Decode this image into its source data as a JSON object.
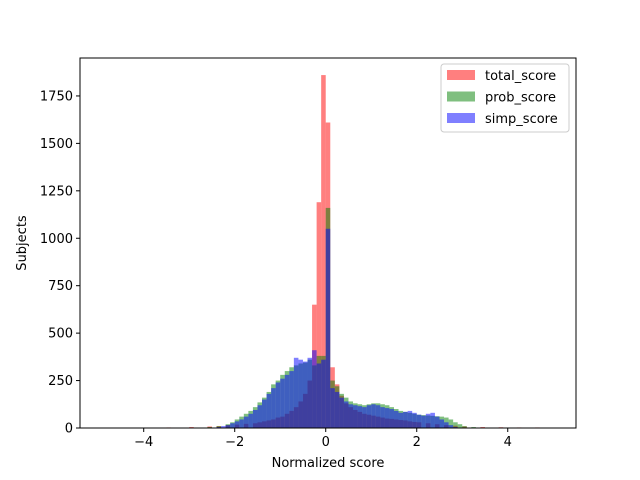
{
  "chart_data": {
    "type": "bar",
    "subtype": "histogram-overlay",
    "title": "",
    "xlabel": "Normalized score",
    "ylabel": "Subjects",
    "xlim": [
      -5.4,
      5.5
    ],
    "ylim": [
      0,
      1950
    ],
    "xticks": [
      -4,
      -2,
      0,
      2,
      4
    ],
    "xtick_labels": [
      "−4",
      "−2",
      "0",
      "2",
      "4"
    ],
    "yticks": [
      0,
      250,
      500,
      750,
      1000,
      1250,
      1500,
      1750
    ],
    "ytick_labels": [
      "0",
      "250",
      "500",
      "750",
      "1000",
      "1250",
      "1500",
      "1750"
    ],
    "grid": false,
    "legend_position": "top-right",
    "bin_width": 0.1,
    "series": [
      {
        "name": "total_score",
        "color": "#ff0000",
        "alpha": 0.5,
        "bins": [
          {
            "x": -3.5,
            "y": 3
          },
          {
            "x": -3.0,
            "y": 5
          },
          {
            "x": -2.6,
            "y": 8
          },
          {
            "x": -2.4,
            "y": 10
          },
          {
            "x": -2.2,
            "y": 15
          },
          {
            "x": -2.0,
            "y": 18
          },
          {
            "x": -1.8,
            "y": 22
          },
          {
            "x": -1.6,
            "y": 25
          },
          {
            "x": -1.5,
            "y": 30
          },
          {
            "x": -1.4,
            "y": 35
          },
          {
            "x": -1.3,
            "y": 40
          },
          {
            "x": -1.2,
            "y": 45
          },
          {
            "x": -1.1,
            "y": 55
          },
          {
            "x": -1.0,
            "y": 60
          },
          {
            "x": -0.9,
            "y": 75
          },
          {
            "x": -0.8,
            "y": 90
          },
          {
            "x": -0.7,
            "y": 110
          },
          {
            "x": -0.6,
            "y": 140
          },
          {
            "x": -0.5,
            "y": 180
          },
          {
            "x": -0.4,
            "y": 250
          },
          {
            "x": -0.3,
            "y": 650
          },
          {
            "x": -0.2,
            "y": 1190
          },
          {
            "x": -0.1,
            "y": 1860
          },
          {
            "x": 0.0,
            "y": 1610
          },
          {
            "x": 0.1,
            "y": 320
          },
          {
            "x": 0.2,
            "y": 230
          },
          {
            "x": 0.3,
            "y": 170
          },
          {
            "x": 0.4,
            "y": 130
          },
          {
            "x": 0.5,
            "y": 110
          },
          {
            "x": 0.6,
            "y": 95
          },
          {
            "x": 0.7,
            "y": 85
          },
          {
            "x": 0.8,
            "y": 75
          },
          {
            "x": 0.9,
            "y": 70
          },
          {
            "x": 1.0,
            "y": 65
          },
          {
            "x": 1.1,
            "y": 60
          },
          {
            "x": 1.2,
            "y": 55
          },
          {
            "x": 1.3,
            "y": 50
          },
          {
            "x": 1.4,
            "y": 48
          },
          {
            "x": 1.5,
            "y": 45
          },
          {
            "x": 1.6,
            "y": 42
          },
          {
            "x": 1.7,
            "y": 40
          },
          {
            "x": 1.8,
            "y": 35
          },
          {
            "x": 1.9,
            "y": 32
          },
          {
            "x": 2.0,
            "y": 30
          },
          {
            "x": 2.2,
            "y": 25
          },
          {
            "x": 2.4,
            "y": 20
          },
          {
            "x": 2.6,
            "y": 15
          },
          {
            "x": 2.8,
            "y": 12
          },
          {
            "x": 3.0,
            "y": 8
          },
          {
            "x": 3.4,
            "y": 5
          },
          {
            "x": 3.8,
            "y": 4
          },
          {
            "x": 4.2,
            "y": 3
          },
          {
            "x": 4.6,
            "y": 3
          }
        ]
      },
      {
        "name": "prob_score",
        "color": "#008000",
        "alpha": 0.5,
        "bins": [
          {
            "x": -2.6,
            "y": 5
          },
          {
            "x": -2.4,
            "y": 10
          },
          {
            "x": -2.2,
            "y": 20
          },
          {
            "x": -2.1,
            "y": 30
          },
          {
            "x": -2.0,
            "y": 45
          },
          {
            "x": -1.9,
            "y": 60
          },
          {
            "x": -1.8,
            "y": 75
          },
          {
            "x": -1.7,
            "y": 90
          },
          {
            "x": -1.6,
            "y": 110
          },
          {
            "x": -1.5,
            "y": 135
          },
          {
            "x": -1.4,
            "y": 160
          },
          {
            "x": -1.3,
            "y": 190
          },
          {
            "x": -1.2,
            "y": 230
          },
          {
            "x": -1.1,
            "y": 250
          },
          {
            "x": -1.0,
            "y": 280
          },
          {
            "x": -0.9,
            "y": 300
          },
          {
            "x": -0.8,
            "y": 320
          },
          {
            "x": -0.7,
            "y": 330
          },
          {
            "x": -0.6,
            "y": 340
          },
          {
            "x": -0.5,
            "y": 345
          },
          {
            "x": -0.4,
            "y": 360
          },
          {
            "x": -0.3,
            "y": 330
          },
          {
            "x": -0.2,
            "y": 380
          },
          {
            "x": -0.1,
            "y": 380
          },
          {
            "x": 0.0,
            "y": 1160
          },
          {
            "x": 0.1,
            "y": 250
          },
          {
            "x": 0.2,
            "y": 220
          },
          {
            "x": 0.3,
            "y": 180
          },
          {
            "x": 0.4,
            "y": 160
          },
          {
            "x": 0.5,
            "y": 140
          },
          {
            "x": 0.6,
            "y": 130
          },
          {
            "x": 0.7,
            "y": 125
          },
          {
            "x": 0.8,
            "y": 120
          },
          {
            "x": 0.9,
            "y": 125
          },
          {
            "x": 1.0,
            "y": 130
          },
          {
            "x": 1.1,
            "y": 130
          },
          {
            "x": 1.2,
            "y": 125
          },
          {
            "x": 1.3,
            "y": 120
          },
          {
            "x": 1.4,
            "y": 110
          },
          {
            "x": 1.5,
            "y": 100
          },
          {
            "x": 1.6,
            "y": 90
          },
          {
            "x": 1.7,
            "y": 85
          },
          {
            "x": 1.8,
            "y": 80
          },
          {
            "x": 1.9,
            "y": 75
          },
          {
            "x": 2.0,
            "y": 70
          },
          {
            "x": 2.1,
            "y": 68
          },
          {
            "x": 2.2,
            "y": 66
          },
          {
            "x": 2.3,
            "y": 64
          },
          {
            "x": 2.4,
            "y": 62
          },
          {
            "x": 2.5,
            "y": 60
          },
          {
            "x": 2.6,
            "y": 55
          },
          {
            "x": 2.7,
            "y": 45
          },
          {
            "x": 2.8,
            "y": 30
          },
          {
            "x": 2.9,
            "y": 20
          },
          {
            "x": 3.0,
            "y": 10
          },
          {
            "x": 3.2,
            "y": 5
          }
        ]
      },
      {
        "name": "simp_score",
        "color": "#0000ff",
        "alpha": 0.5,
        "bins": [
          {
            "x": -2.4,
            "y": 5
          },
          {
            "x": -2.3,
            "y": 10
          },
          {
            "x": -2.2,
            "y": 15
          },
          {
            "x": -2.1,
            "y": 25
          },
          {
            "x": -2.0,
            "y": 35
          },
          {
            "x": -1.9,
            "y": 45
          },
          {
            "x": -1.8,
            "y": 60
          },
          {
            "x": -1.7,
            "y": 75
          },
          {
            "x": -1.6,
            "y": 95
          },
          {
            "x": -1.5,
            "y": 120
          },
          {
            "x": -1.4,
            "y": 150
          },
          {
            "x": -1.3,
            "y": 180
          },
          {
            "x": -1.2,
            "y": 210
          },
          {
            "x": -1.1,
            "y": 240
          },
          {
            "x": -1.0,
            "y": 260
          },
          {
            "x": -0.9,
            "y": 280
          },
          {
            "x": -0.8,
            "y": 300
          },
          {
            "x": -0.7,
            "y": 370
          },
          {
            "x": -0.6,
            "y": 360
          },
          {
            "x": -0.5,
            "y": 350
          },
          {
            "x": -0.4,
            "y": 370
          },
          {
            "x": -0.3,
            "y": 410
          },
          {
            "x": -0.2,
            "y": 340
          },
          {
            "x": -0.1,
            "y": 360
          },
          {
            "x": 0.0,
            "y": 1050
          },
          {
            "x": 0.1,
            "y": 210
          },
          {
            "x": 0.2,
            "y": 190
          },
          {
            "x": 0.3,
            "y": 160
          },
          {
            "x": 0.4,
            "y": 140
          },
          {
            "x": 0.5,
            "y": 125
          },
          {
            "x": 0.6,
            "y": 120
          },
          {
            "x": 0.7,
            "y": 115
          },
          {
            "x": 0.8,
            "y": 110
          },
          {
            "x": 0.9,
            "y": 120
          },
          {
            "x": 1.0,
            "y": 125
          },
          {
            "x": 1.1,
            "y": 120
          },
          {
            "x": 1.2,
            "y": 110
          },
          {
            "x": 1.3,
            "y": 105
          },
          {
            "x": 1.4,
            "y": 100
          },
          {
            "x": 1.5,
            "y": 90
          },
          {
            "x": 1.6,
            "y": 80
          },
          {
            "x": 1.7,
            "y": 85
          },
          {
            "x": 1.8,
            "y": 90
          },
          {
            "x": 1.9,
            "y": 80
          },
          {
            "x": 2.0,
            "y": 70
          },
          {
            "x": 2.1,
            "y": 65
          },
          {
            "x": 2.2,
            "y": 75
          },
          {
            "x": 2.3,
            "y": 80
          },
          {
            "x": 2.4,
            "y": 60
          },
          {
            "x": 2.5,
            "y": 45
          },
          {
            "x": 2.6,
            "y": 30
          },
          {
            "x": 2.7,
            "y": 15
          },
          {
            "x": 2.8,
            "y": 5
          }
        ]
      }
    ]
  }
}
